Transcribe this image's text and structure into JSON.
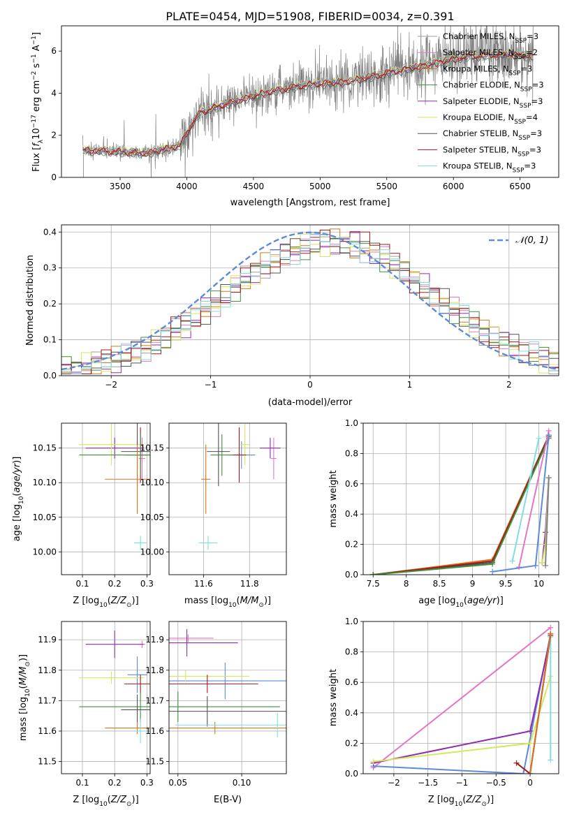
{
  "figure_title": "PLATE=0454, MJD=51908, FIBERID=0034, z=0.391",
  "models": [
    {
      "name": "Chabrier MILES, N_SSP=3",
      "color": "#9e9e9e"
    },
    {
      "name": "Salpeter MILES, N_SSP=2",
      "color": "#e377c2"
    },
    {
      "name": "Kroupa MILES, N_SSP=3",
      "color": "#d9751e"
    },
    {
      "name": "Chabrier ELODIE, N_SSP=3",
      "color": "#3f8f3f"
    },
    {
      "name": "Salpeter ELODIE, N_SSP=3",
      "color": "#8e2cb0"
    },
    {
      "name": "Kroupa ELODIE, N_SSP=4",
      "color": "#d5e75a"
    },
    {
      "name": "Chabrier STELIB, N_SSP=3",
      "color": "#505050"
    },
    {
      "name": "Salpeter STELIB, N_SSP=3",
      "color": "#a11a1a"
    },
    {
      "name": "Kroupa STELIB, N_SSP=3",
      "color": "#7fdfe0"
    }
  ],
  "chart_data": [
    {
      "id": "spectrum",
      "type": "line",
      "xlabel": "wavelength [Angstrom, rest frame]",
      "ylabel": "Flux [f_λ 10^-17 erg cm^-2 s^-1 A^-1]",
      "xlim": [
        3060,
        6790
      ],
      "ylim": [
        0,
        7.2
      ],
      "xticks": [
        3500,
        4000,
        4500,
        5000,
        5500,
        6000,
        6500
      ],
      "yticks": [
        0,
        2,
        4,
        6
      ],
      "grid": false,
      "legend": "top-right",
      "data_color": "#808080",
      "model_color": "#a11a1a",
      "continuum": [
        [
          3220,
          1.3
        ],
        [
          3400,
          1.25
        ],
        [
          3700,
          1.15
        ],
        [
          3950,
          1.5
        ],
        [
          4000,
          2.15
        ],
        [
          4100,
          3.1
        ],
        [
          4300,
          3.5
        ],
        [
          4600,
          4.05
        ],
        [
          4900,
          4.4
        ],
        [
          5200,
          4.55
        ],
        [
          5500,
          4.95
        ],
        [
          5800,
          5.35
        ],
        [
          6100,
          5.75
        ],
        [
          6400,
          5.85
        ],
        [
          6600,
          5.75
        ]
      ]
    },
    {
      "id": "residuals",
      "type": "step",
      "xlabel": "(data-model)/error",
      "ylabel": "Normed distribution",
      "xlim": [
        -2.5,
        2.5
      ],
      "ylim": [
        0,
        0.42
      ],
      "xticks": [
        -2,
        -1,
        0,
        1,
        2
      ],
      "yticks": [
        0.0,
        0.1,
        0.2,
        0.3,
        0.4
      ],
      "grid": true,
      "legend": "top-right",
      "normal_label": "𝒩(0, 1)",
      "normal_color": "#5b8bd9",
      "bin_width": 0.1
    },
    {
      "id": "age-vs-Z",
      "type": "errorbar",
      "xlabel": "Z [log10(Z/Z⊙)]",
      "ylabel": "age  [log10(age/yr)]",
      "xlim": [
        0.035,
        0.31
      ],
      "ylim": [
        9.967,
        10.186
      ],
      "xticks": [
        0.1,
        0.2,
        0.3
      ],
      "yticks": [
        10.0,
        10.05,
        10.1,
        10.15
      ],
      "grid": true
    },
    {
      "id": "age-vs-mass",
      "type": "errorbar",
      "xlabel": "mass [log10(M/M⊙)]",
      "ylabel": "",
      "xlim": [
        11.45,
        11.96
      ],
      "ylim": [
        9.967,
        10.186
      ],
      "xticks": [
        11.6,
        11.8
      ],
      "yticks": [
        10.0,
        10.05,
        10.1,
        10.15
      ],
      "grid": true
    },
    {
      "id": "mass-weight-vs-age",
      "type": "line",
      "xlabel": "age  [log10(age/yr)]",
      "ylabel": "mass weight",
      "xlim": [
        7.35,
        10.3
      ],
      "ylim": [
        0,
        1.0
      ],
      "xticks": [
        7.5,
        8.0,
        8.5,
        9.0,
        9.5,
        10.0
      ],
      "yticks": [
        0.0,
        0.2,
        0.4,
        0.6,
        0.8,
        1.0
      ],
      "grid": true,
      "series": [
        {
          "color": "#d9751e",
          "points": [
            [
              7.5,
              0.0
            ],
            [
              9.3,
              0.1
            ],
            [
              10.15,
              0.92
            ]
          ]
        },
        {
          "color": "#505050",
          "points": [
            [
              7.5,
              0.0
            ],
            [
              9.3,
              0.08
            ],
            [
              10.15,
              0.92
            ]
          ]
        },
        {
          "color": "#a11a1a",
          "points": [
            [
              7.5,
              0.0
            ],
            [
              9.3,
              0.09
            ],
            [
              10.15,
              0.91
            ]
          ]
        },
        {
          "color": "#3f8f3f",
          "points": [
            [
              7.5,
              0.0
            ],
            [
              9.3,
              0.07
            ],
            [
              10.15,
              0.9
            ]
          ]
        },
        {
          "color": "#7fdfe0",
          "points": [
            [
              9.6,
              0.09
            ],
            [
              10.0,
              0.9
            ]
          ]
        },
        {
          "color": "#e377c2",
          "points": [
            [
              9.7,
              0.05
            ],
            [
              10.15,
              0.95
            ]
          ]
        },
        {
          "color": "#5b8bd9",
          "points": [
            [
              9.3,
              0.02
            ],
            [
              9.95,
              0.06
            ],
            [
              10.15,
              0.92
            ]
          ]
        },
        {
          "color": "#8e2cb0",
          "points": [
            [
              10.05,
              0.08
            ],
            [
              10.1,
              0.28
            ],
            [
              10.15,
              0.64
            ]
          ]
        },
        {
          "color": "#d5e75a",
          "points": [
            [
              10.05,
              0.08
            ],
            [
              10.1,
              0.2
            ],
            [
              10.15,
              0.64
            ]
          ]
        },
        {
          "color": "#808080",
          "points": [
            [
              10.1,
              0.06
            ],
            [
              10.15,
              0.64
            ]
          ]
        }
      ]
    },
    {
      "id": "mass-vs-Z",
      "type": "errorbar",
      "xlabel": "Z [log10(Z/Z⊙)]",
      "ylabel": "mass [log10(M/M⊙)]",
      "xlim": [
        0.035,
        0.31
      ],
      "ylim": [
        11.46,
        11.96
      ],
      "xticks": [
        0.1,
        0.2,
        0.3
      ],
      "yticks": [
        11.5,
        11.6,
        11.7,
        11.8,
        11.9
      ],
      "grid": true
    },
    {
      "id": "mass-vs-EBV",
      "type": "errorbar",
      "xlabel": "E(B-V)",
      "ylabel": "",
      "xlim": [
        0.043,
        0.135
      ],
      "ylim": [
        11.46,
        11.96
      ],
      "xticks": [
        0.05,
        0.1
      ],
      "yticks": [
        11.5,
        11.6,
        11.7,
        11.8,
        11.9
      ],
      "grid": true
    },
    {
      "id": "mass-weight-vs-Z",
      "type": "line",
      "xlabel": "Z [log10(Z/Z⊙)]",
      "ylabel": "mass weight",
      "xlim": [
        -2.45,
        0.42
      ],
      "ylim": [
        0,
        1.0
      ],
      "xticks": [
        -2.0,
        -1.5,
        -1.0,
        -0.5,
        0.0
      ],
      "yticks": [
        0.0,
        0.2,
        0.4,
        0.6,
        0.8,
        1.0
      ],
      "grid": true,
      "series": [
        {
          "color": "#e377c2",
          "points": [
            [
              -2.3,
              0.04
            ],
            [
              0.3,
              0.96
            ]
          ]
        },
        {
          "color": "#5b8bd9",
          "points": [
            [
              -2.3,
              0.05
            ],
            [
              -0.1,
              0.0
            ],
            [
              0.3,
              0.92
            ]
          ]
        },
        {
          "color": "#8e2cb0",
          "points": [
            [
              -2.3,
              0.07
            ],
            [
              0.0,
              0.28
            ],
            [
              0.3,
              0.9
            ]
          ]
        },
        {
          "color": "#d5e75a",
          "points": [
            [
              -2.3,
              0.08
            ],
            [
              0.0,
              0.2
            ],
            [
              0.3,
              0.64
            ]
          ]
        },
        {
          "color": "#7fdfe0",
          "points": [
            [
              0.3,
              0.09
            ],
            [
              0.3,
              0.9
            ]
          ]
        },
        {
          "color": "#a11a1a",
          "points": [
            [
              -0.2,
              0.07
            ],
            [
              0.0,
              0.0
            ],
            [
              0.3,
              0.91
            ]
          ]
        },
        {
          "color": "#505050",
          "points": [
            [
              0.0,
              0.0
            ],
            [
              0.3,
              0.92
            ]
          ]
        },
        {
          "color": "#d9751e",
          "points": [
            [
              0.0,
              0.0
            ],
            [
              0.3,
              0.92
            ]
          ]
        }
      ]
    }
  ],
  "errorbars": [
    {
      "color": "#e377c2",
      "Z": 0.285,
      "Zerr": 0.01,
      "age": 10.135,
      "ageerr": 0.03,
      "mass": 11.905,
      "masserr": 0.012,
      "mass_Z": 11.885,
      "ebv": 0.058,
      "ebverr": 0.02
    },
    {
      "color": "#8e2cb0",
      "Z": 0.2,
      "Zerr": 0.09,
      "age": 10.15,
      "ageerr": 0.015,
      "mass": 11.89,
      "masserr": 0.045,
      "mass_Z": 11.885,
      "ebv": 0.057,
      "ebverr": 0.04
    },
    {
      "color": "#5b8bd9",
      "Z": 0.27,
      "Zerr": 0.03,
      "age": 10.14,
      "ageerr": 0.02,
      "mass": 11.765,
      "masserr": 0.06,
      "mass_Z": 11.785,
      "ebv": 0.087,
      "ebverr": 0.05
    },
    {
      "color": "#d5e75a",
      "Z": 0.19,
      "Zerr": 0.1,
      "age": 10.155,
      "ageerr": 0.03,
      "mass": 11.78,
      "masserr": 0.02,
      "mass_Z": 11.775,
      "ebv": 0.056,
      "ebverr": 0.05
    },
    {
      "color": "#a11a1a",
      "Z": 0.28,
      "Zerr": 0.05,
      "age": 10.14,
      "ageerr": 0.04,
      "mass": 11.755,
      "masserr": 0.03,
      "mass_Z": 11.755,
      "ebv": 0.073,
      "ebverr": 0.04
    },
    {
      "color": "#3f8f3f",
      "Z": 0.28,
      "Zerr": 0.19,
      "age": 10.14,
      "ageerr": 0.03,
      "mass": 11.68,
      "masserr": 0.05,
      "mass_Z": 11.68,
      "ebv": 0.05,
      "ebverr": 0.08
    },
    {
      "color": "#505050",
      "Z": 0.27,
      "Zerr": 0.05,
      "age": 10.145,
      "ageerr": 0.05,
      "mass": 11.665,
      "masserr": 0.05,
      "mass_Z": 11.67,
      "ebv": 0.073,
      "ebverr": 0.07
    },
    {
      "color": "#d9751e",
      "Z": 0.27,
      "Zerr": 0.1,
      "age": 10.105,
      "ageerr": 0.05,
      "mass": 11.61,
      "masserr": 0.02,
      "mass_Z": 11.61,
      "ebv": 0.079,
      "ebverr": 0.07
    },
    {
      "color": "#7fdfe0",
      "Z": 0.28,
      "Zerr": 0.02,
      "age": 10.013,
      "ageerr": 0.01,
      "mass": 11.62,
      "masserr": 0.04,
      "mass_Z": 11.6,
      "ebv": 0.128,
      "ebverr": 0.08
    }
  ]
}
